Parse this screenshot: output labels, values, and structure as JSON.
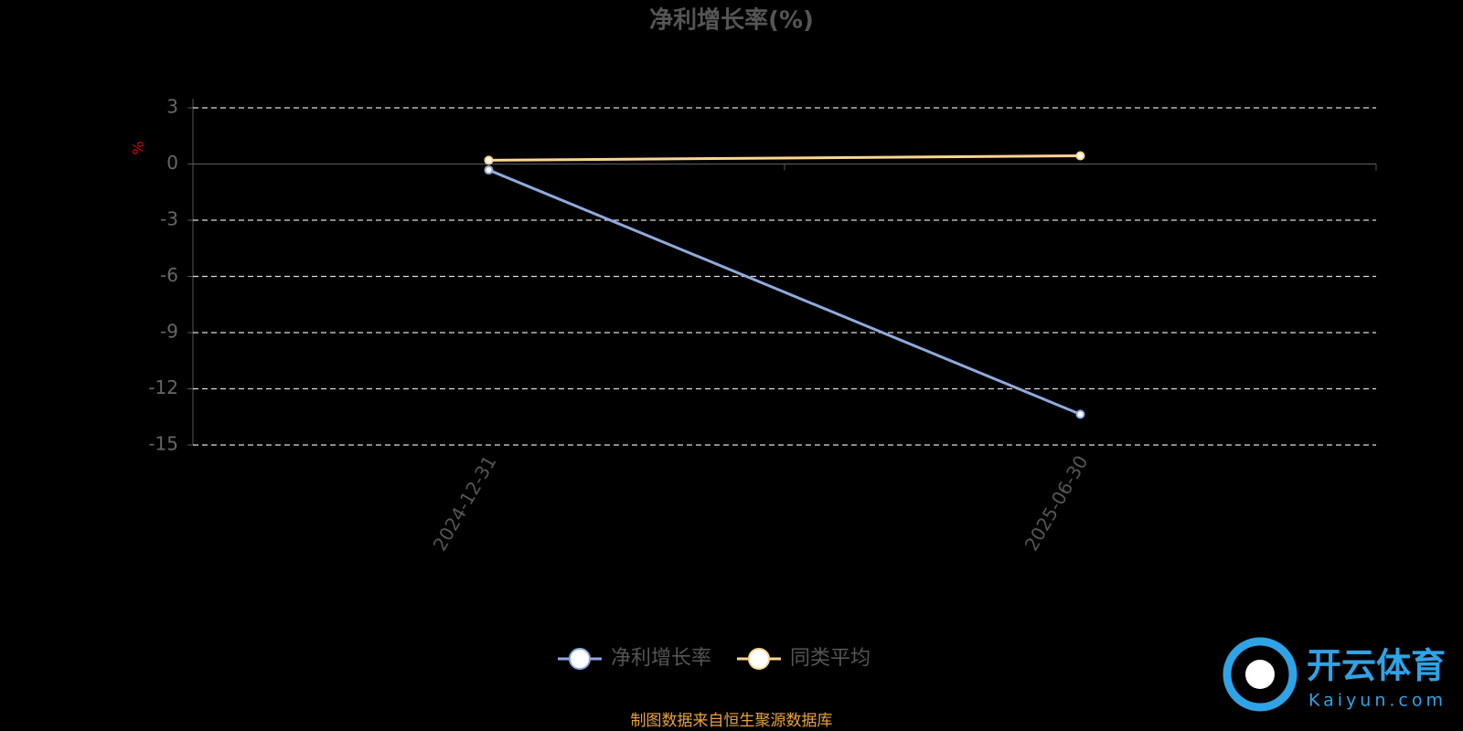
{
  "chart_data": {
    "type": "line",
    "title": "净利增长率(%)",
    "y_label": "%",
    "categories": [
      "2024-12-31",
      "2025-06-30"
    ],
    "series": [
      {
        "name": "净利增长率",
        "color": "#8faadc",
        "values": [
          -0.32,
          -13.36
        ]
      },
      {
        "name": "同类平均",
        "color": "#ffd591",
        "values": [
          0.2,
          0.44
        ]
      }
    ],
    "ylim": [
      -15,
      3
    ],
    "yticks": [
      3,
      0,
      -3,
      -6,
      -9,
      -12,
      -15
    ],
    "grid": true,
    "source": "制图数据来自恒生聚源数据库",
    "watermark": {
      "name": "开云体育",
      "site": "Kaiyun.com"
    }
  }
}
